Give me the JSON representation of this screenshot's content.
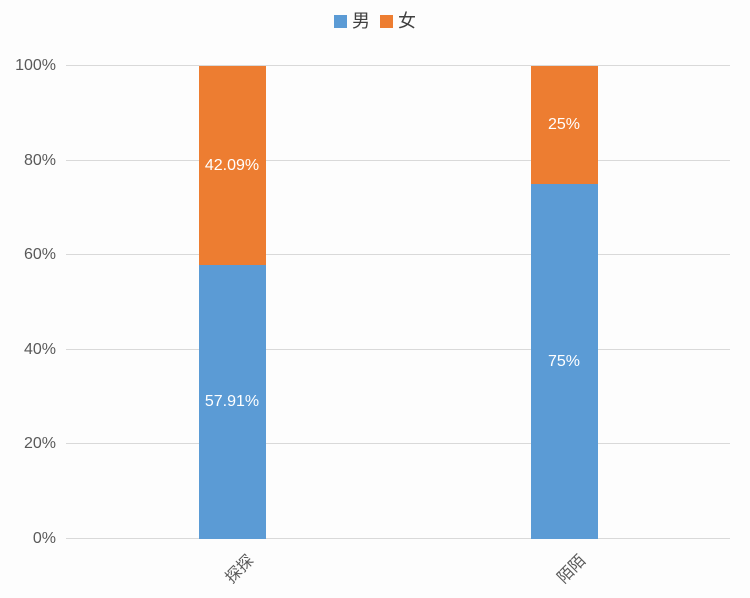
{
  "legend": {
    "items": [
      {
        "label": "男",
        "color": "#5B9BD5"
      },
      {
        "label": "女",
        "color": "#ED7D31"
      }
    ]
  },
  "chart_data": {
    "type": "bar",
    "subtype": "stacked-100-percent",
    "title": "",
    "xlabel": "",
    "ylabel": "",
    "categories": [
      "探探",
      "陌陌"
    ],
    "series": [
      {
        "name": "男",
        "color": "#5B9BD5",
        "values": [
          57.91,
          75
        ],
        "data_labels": [
          "57.91%",
          "75%"
        ]
      },
      {
        "name": "女",
        "color": "#ED7D31",
        "values": [
          42.09,
          25
        ],
        "data_labels": [
          "42.09%",
          "25%"
        ]
      }
    ],
    "yticks": [
      "0%",
      "20%",
      "40%",
      "60%",
      "80%",
      "100%"
    ],
    "ylim": [
      0,
      100
    ],
    "grid": true,
    "legend_position": "top",
    "category_label_rotation_deg": 45
  },
  "style": {
    "grid_color": "#D9D9D9",
    "tick_text_color": "#595959",
    "data_label_color": "#FFFFFF",
    "background": "#FFFFFF"
  }
}
